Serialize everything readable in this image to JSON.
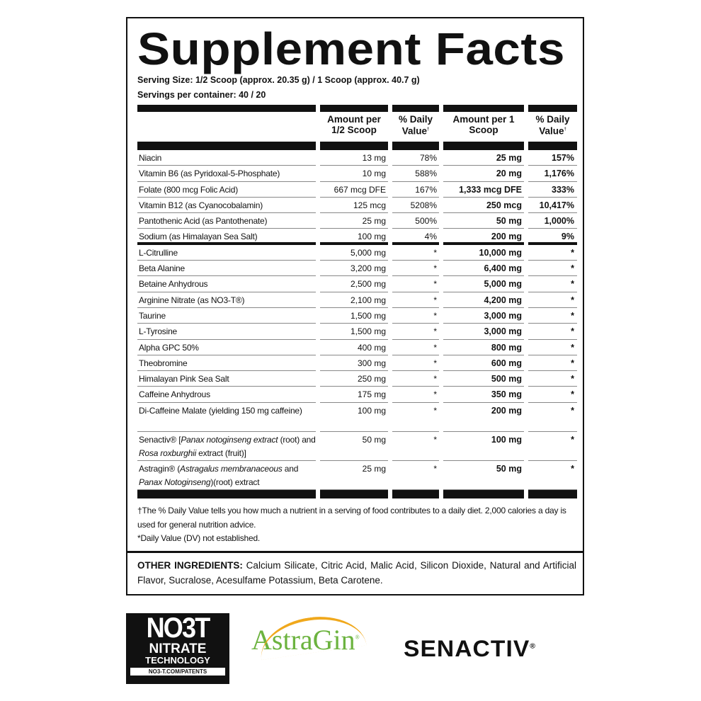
{
  "title": "Supplement Facts",
  "serving_size": "Serving Size: 1/2 Scoop (approx. 20.35 g) / 1 Scoop (approx. 40.7 g)",
  "servings_per_container": "Servings per container: 40 / 20",
  "headers": {
    "amount_half": "Amount per 1/2 Scoop",
    "dv_half": "% Daily Value",
    "amount_full": "Amount per 1 Scoop",
    "dv_full": "% Daily Value",
    "dagger": "†"
  },
  "rows_vitamins": [
    {
      "name": [
        {
          "t": "Niacin"
        }
      ],
      "a1": "13 mg",
      "d1": "78%",
      "a2": "25 mg",
      "d2": "157%"
    },
    {
      "name": [
        {
          "t": "Vitamin B6 (as Pyridoxal-5-Phosphate)"
        }
      ],
      "a1": "10 mg",
      "d1": "588%",
      "a2": "20 mg",
      "d2": "1,176%"
    },
    {
      "name": [
        {
          "t": "Folate (800 mcg Folic Acid)"
        }
      ],
      "a1": "667 mcg DFE",
      "d1": "167%",
      "a2": "1,333 mcg DFE",
      "d2": "333%"
    },
    {
      "name": [
        {
          "t": "Vitamin B12 (as Cyanocobalamin)"
        }
      ],
      "a1": "125 mcg",
      "d1": "5208%",
      "a2": "250 mcg",
      "d2": "10,417%"
    },
    {
      "name": [
        {
          "t": "Pantothenic Acid (as Pantothenate)"
        }
      ],
      "a1": "25 mg",
      "d1": "500%",
      "a2": "50 mg",
      "d2": "1,000%"
    },
    {
      "name": [
        {
          "t": "Sodium (as Himalayan Sea Salt)"
        }
      ],
      "a1": "100 mg",
      "d1": "4%",
      "a2": "200 mg",
      "d2": "9%"
    }
  ],
  "rows_blend": [
    {
      "name": [
        {
          "t": "L-Citrulline"
        }
      ],
      "a1": "5,000 mg",
      "d1": "*",
      "a2": "10,000 mg",
      "d2": "*"
    },
    {
      "name": [
        {
          "t": "Beta Alanine"
        }
      ],
      "a1": "3,200 mg",
      "d1": "*",
      "a2": "6,400 mg",
      "d2": "*"
    },
    {
      "name": [
        {
          "t": "Betaine Anhydrous"
        }
      ],
      "a1": "2,500 mg",
      "d1": "*",
      "a2": "5,000 mg",
      "d2": "*"
    },
    {
      "name": [
        {
          "t": "Arginine Nitrate (as NO3-T®)"
        }
      ],
      "a1": "2,100 mg",
      "d1": "*",
      "a2": "4,200 mg",
      "d2": "*"
    },
    {
      "name": [
        {
          "t": "Taurine"
        }
      ],
      "a1": "1,500 mg",
      "d1": "*",
      "a2": "3,000 mg",
      "d2": "*"
    },
    {
      "name": [
        {
          "t": "L-Tyrosine"
        }
      ],
      "a1": "1,500 mg",
      "d1": "*",
      "a2": "3,000 mg",
      "d2": "*"
    },
    {
      "name": [
        {
          "t": "Alpha GPC 50%"
        }
      ],
      "a1": "400 mg",
      "d1": "*",
      "a2": "800 mg",
      "d2": "*"
    },
    {
      "name": [
        {
          "t": "Theobromine"
        }
      ],
      "a1": "300 mg",
      "d1": "*",
      "a2": "600 mg",
      "d2": "*"
    },
    {
      "name": [
        {
          "t": "Himalayan Pink Sea Salt"
        }
      ],
      "a1": "250 mg",
      "d1": "*",
      "a2": "500 mg",
      "d2": "*"
    },
    {
      "name": [
        {
          "t": "Caffeine Anhydrous"
        }
      ],
      "a1": "175 mg",
      "d1": "*",
      "a2": "350 mg",
      "d2": "*"
    },
    {
      "name": [
        {
          "t": "Di-Caffeine Malate (yielding 150 mg caffeine)"
        }
      ],
      "a1": "100 mg",
      "d1": "*",
      "a2": "200 mg",
      "d2": "*",
      "two": true
    },
    {
      "name": [
        {
          "t": "Senactiv® ["
        },
        {
          "t": "Panax notoginseng extract",
          "i": true
        },
        {
          "t": " (root) and "
        },
        {
          "t": "Rosa roxburghii",
          "i": true
        },
        {
          "t": " extract (fruit)]"
        }
      ],
      "a1": "50 mg",
      "d1": "*",
      "a2": "100 mg",
      "d2": "*",
      "two": true
    },
    {
      "name": [
        {
          "t": "Astragin® ("
        },
        {
          "t": "Astragalus membranaceous",
          "i": true
        },
        {
          "t": " and "
        },
        {
          "t": "Panax Notoginseng",
          "i": true
        },
        {
          "t": ")(root) extract"
        }
      ],
      "a1": "25 mg",
      "d1": "*",
      "a2": "50 mg",
      "d2": "*",
      "two": true
    }
  ],
  "footnotes": [
    "†The % Daily Value tells you how much a nutrient in a serving of food contributes to a daily diet. 2,000 calories a day is used for general nutrition advice.",
    "*Daily Value (DV) not established."
  ],
  "other_ingredients": {
    "label": "OTHER INGREDIENTS:",
    "text": " Calcium Silicate, Citric Acid, Malic Acid, Silicon Dioxide, Natural and Artificial Flavor, Sucralose,  Acesulfame Potassium, Beta Carotene."
  },
  "logos": {
    "no3t": {
      "mark": "NO3T",
      "line1": "NITRATE",
      "line2": "TECHNOLOGY",
      "url": "NO3-T.COM/PATENTS"
    },
    "astragin": {
      "mark": "AstraGin",
      "colors": {
        "text": "#6cb33f",
        "arc": "#f0a81c"
      }
    },
    "senactiv": {
      "mark": "SENACTIV"
    }
  }
}
